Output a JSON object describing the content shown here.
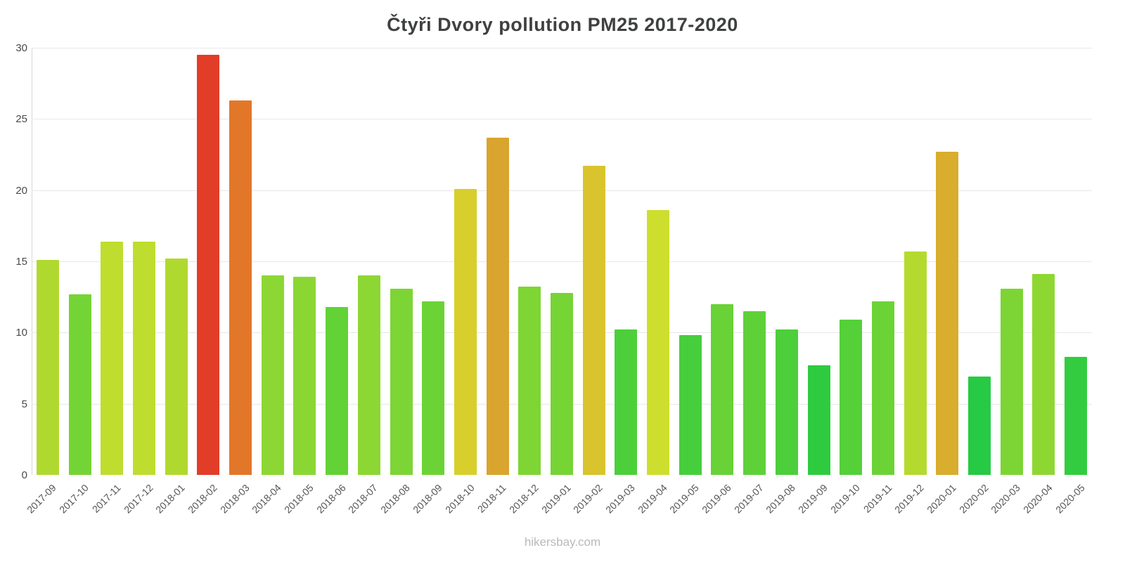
{
  "title": "Čtyři Dvory pollution PM25 2017-2020",
  "footer": "hikersbay.com",
  "chart_data": {
    "type": "bar",
    "title": "Čtyři Dvory pollution PM25 2017-2020",
    "source_caption": "hikersbay.com",
    "xlabel": "",
    "ylabel": "",
    "ylim": [
      0,
      30
    ],
    "yticks": [
      0,
      5,
      10,
      15,
      20,
      25,
      30
    ],
    "grid": true,
    "legend": "none",
    "categories": [
      "2017-09",
      "2017-10",
      "2017-11",
      "2017-12",
      "2018-01",
      "2018-02",
      "2018-03",
      "2018-04",
      "2018-05",
      "2018-06",
      "2018-07",
      "2018-08",
      "2018-09",
      "2018-10",
      "2018-11",
      "2018-12",
      "2019-01",
      "2019-02",
      "2019-03",
      "2019-04",
      "2019-05",
      "2019-06",
      "2019-07",
      "2019-08",
      "2019-09",
      "2019-10",
      "2019-11",
      "2019-12",
      "2020-01",
      "2020-02",
      "2020-03",
      "2020-04",
      "2020-05"
    ],
    "values": [
      15.1,
      12.7,
      16.4,
      16.4,
      15.2,
      29.5,
      26.3,
      14.0,
      13.9,
      11.8,
      14.0,
      13.1,
      12.2,
      20.1,
      23.7,
      13.2,
      12.8,
      21.7,
      10.2,
      18.6,
      9.8,
      12.0,
      11.5,
      10.2,
      7.7,
      10.9,
      12.2,
      15.7,
      22.7,
      6.9,
      13.1,
      14.1,
      8.3
    ],
    "colors": [
      "#b0d930",
      "#74d435",
      "#bedd2f",
      "#bedd2f",
      "#b0d930",
      "#e23d28",
      "#e2772a",
      "#8cd733",
      "#8ad733",
      "#62d237",
      "#8cd733",
      "#7cd534",
      "#6cd336",
      "#d8cf2c",
      "#d9a52e",
      "#7ed534",
      "#76d435",
      "#d9c42d",
      "#4ccf3b",
      "#cede2e",
      "#46ce3c",
      "#68d236",
      "#5ed138",
      "#4ccf3b",
      "#2ecb41",
      "#55d039",
      "#6cd336",
      "#b4da30",
      "#d9ad2d",
      "#27ca44",
      "#7cd534",
      "#8ed733",
      "#33cc40"
    ],
    "axis_color": "#d6d6d6",
    "grid_color": "#e8e8e8",
    "tick_label_color": "#4a4a4a",
    "x_label_color": "#555555"
  }
}
